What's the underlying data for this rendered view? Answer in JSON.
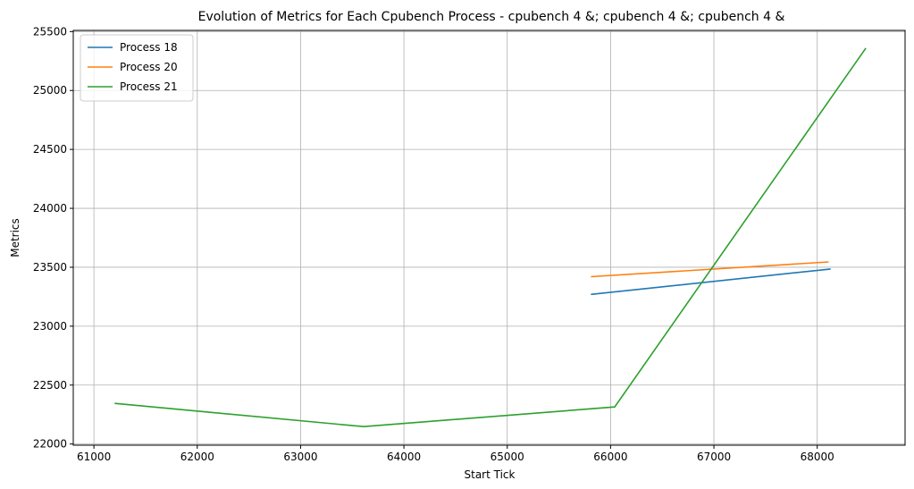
{
  "chart_data": {
    "type": "line",
    "title": "Evolution of Metrics for Each Cpubench Process - cpubench 4 &; cpubench 4 &; cpubench 4 &",
    "xlabel": "Start Tick",
    "ylabel": "Metrics",
    "xlim": [
      60800,
      68850
    ],
    "ylim": [
      21990,
      25510
    ],
    "x_ticks": [
      61000,
      62000,
      63000,
      64000,
      65000,
      66000,
      67000,
      68000
    ],
    "y_ticks": [
      22000,
      22500,
      23000,
      23500,
      24000,
      24500,
      25000,
      25500
    ],
    "grid": true,
    "legend_position": "top-left",
    "series": [
      {
        "name": "Process 18",
        "color": "#1f77b4",
        "x": [
          65810,
          68130
        ],
        "y": [
          23270,
          23485
        ]
      },
      {
        "name": "Process 20",
        "color": "#ff7f0e",
        "x": [
          65810,
          68110
        ],
        "y": [
          23420,
          23545
        ]
      },
      {
        "name": "Process 21",
        "color": "#2ca02c",
        "x": [
          61200,
          63610,
          66040,
          68470
        ],
        "y": [
          22345,
          22148,
          22315,
          25360
        ]
      }
    ]
  }
}
